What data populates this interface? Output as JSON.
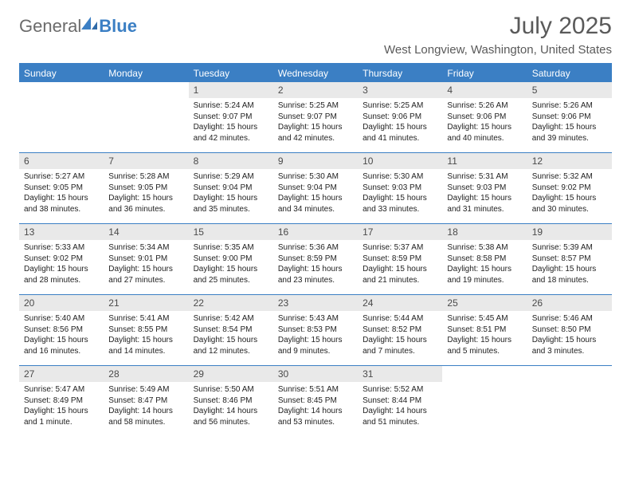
{
  "brand": {
    "part1": "General",
    "part2": "Blue"
  },
  "title": "July 2025",
  "location": "West Longview, Washington, United States",
  "colors": {
    "accent": "#3b7fc4",
    "daynum_bg": "#e9e9e9",
    "text": "#222222",
    "muted": "#5a5a5a",
    "white": "#ffffff"
  },
  "dayHeaders": [
    "Sunday",
    "Monday",
    "Tuesday",
    "Wednesday",
    "Thursday",
    "Friday",
    "Saturday"
  ],
  "weeks": [
    [
      {
        "day": "",
        "sunrise": "",
        "sunset": "",
        "daylight": ""
      },
      {
        "day": "",
        "sunrise": "",
        "sunset": "",
        "daylight": ""
      },
      {
        "day": "1",
        "sunrise": "Sunrise: 5:24 AM",
        "sunset": "Sunset: 9:07 PM",
        "daylight": "Daylight: 15 hours and 42 minutes."
      },
      {
        "day": "2",
        "sunrise": "Sunrise: 5:25 AM",
        "sunset": "Sunset: 9:07 PM",
        "daylight": "Daylight: 15 hours and 42 minutes."
      },
      {
        "day": "3",
        "sunrise": "Sunrise: 5:25 AM",
        "sunset": "Sunset: 9:06 PM",
        "daylight": "Daylight: 15 hours and 41 minutes."
      },
      {
        "day": "4",
        "sunrise": "Sunrise: 5:26 AM",
        "sunset": "Sunset: 9:06 PM",
        "daylight": "Daylight: 15 hours and 40 minutes."
      },
      {
        "day": "5",
        "sunrise": "Sunrise: 5:26 AM",
        "sunset": "Sunset: 9:06 PM",
        "daylight": "Daylight: 15 hours and 39 minutes."
      }
    ],
    [
      {
        "day": "6",
        "sunrise": "Sunrise: 5:27 AM",
        "sunset": "Sunset: 9:05 PM",
        "daylight": "Daylight: 15 hours and 38 minutes."
      },
      {
        "day": "7",
        "sunrise": "Sunrise: 5:28 AM",
        "sunset": "Sunset: 9:05 PM",
        "daylight": "Daylight: 15 hours and 36 minutes."
      },
      {
        "day": "8",
        "sunrise": "Sunrise: 5:29 AM",
        "sunset": "Sunset: 9:04 PM",
        "daylight": "Daylight: 15 hours and 35 minutes."
      },
      {
        "day": "9",
        "sunrise": "Sunrise: 5:30 AM",
        "sunset": "Sunset: 9:04 PM",
        "daylight": "Daylight: 15 hours and 34 minutes."
      },
      {
        "day": "10",
        "sunrise": "Sunrise: 5:30 AM",
        "sunset": "Sunset: 9:03 PM",
        "daylight": "Daylight: 15 hours and 33 minutes."
      },
      {
        "day": "11",
        "sunrise": "Sunrise: 5:31 AM",
        "sunset": "Sunset: 9:03 PM",
        "daylight": "Daylight: 15 hours and 31 minutes."
      },
      {
        "day": "12",
        "sunrise": "Sunrise: 5:32 AM",
        "sunset": "Sunset: 9:02 PM",
        "daylight": "Daylight: 15 hours and 30 minutes."
      }
    ],
    [
      {
        "day": "13",
        "sunrise": "Sunrise: 5:33 AM",
        "sunset": "Sunset: 9:02 PM",
        "daylight": "Daylight: 15 hours and 28 minutes."
      },
      {
        "day": "14",
        "sunrise": "Sunrise: 5:34 AM",
        "sunset": "Sunset: 9:01 PM",
        "daylight": "Daylight: 15 hours and 27 minutes."
      },
      {
        "day": "15",
        "sunrise": "Sunrise: 5:35 AM",
        "sunset": "Sunset: 9:00 PM",
        "daylight": "Daylight: 15 hours and 25 minutes."
      },
      {
        "day": "16",
        "sunrise": "Sunrise: 5:36 AM",
        "sunset": "Sunset: 8:59 PM",
        "daylight": "Daylight: 15 hours and 23 minutes."
      },
      {
        "day": "17",
        "sunrise": "Sunrise: 5:37 AM",
        "sunset": "Sunset: 8:59 PM",
        "daylight": "Daylight: 15 hours and 21 minutes."
      },
      {
        "day": "18",
        "sunrise": "Sunrise: 5:38 AM",
        "sunset": "Sunset: 8:58 PM",
        "daylight": "Daylight: 15 hours and 19 minutes."
      },
      {
        "day": "19",
        "sunrise": "Sunrise: 5:39 AM",
        "sunset": "Sunset: 8:57 PM",
        "daylight": "Daylight: 15 hours and 18 minutes."
      }
    ],
    [
      {
        "day": "20",
        "sunrise": "Sunrise: 5:40 AM",
        "sunset": "Sunset: 8:56 PM",
        "daylight": "Daylight: 15 hours and 16 minutes."
      },
      {
        "day": "21",
        "sunrise": "Sunrise: 5:41 AM",
        "sunset": "Sunset: 8:55 PM",
        "daylight": "Daylight: 15 hours and 14 minutes."
      },
      {
        "day": "22",
        "sunrise": "Sunrise: 5:42 AM",
        "sunset": "Sunset: 8:54 PM",
        "daylight": "Daylight: 15 hours and 12 minutes."
      },
      {
        "day": "23",
        "sunrise": "Sunrise: 5:43 AM",
        "sunset": "Sunset: 8:53 PM",
        "daylight": "Daylight: 15 hours and 9 minutes."
      },
      {
        "day": "24",
        "sunrise": "Sunrise: 5:44 AM",
        "sunset": "Sunset: 8:52 PM",
        "daylight": "Daylight: 15 hours and 7 minutes."
      },
      {
        "day": "25",
        "sunrise": "Sunrise: 5:45 AM",
        "sunset": "Sunset: 8:51 PM",
        "daylight": "Daylight: 15 hours and 5 minutes."
      },
      {
        "day": "26",
        "sunrise": "Sunrise: 5:46 AM",
        "sunset": "Sunset: 8:50 PM",
        "daylight": "Daylight: 15 hours and 3 minutes."
      }
    ],
    [
      {
        "day": "27",
        "sunrise": "Sunrise: 5:47 AM",
        "sunset": "Sunset: 8:49 PM",
        "daylight": "Daylight: 15 hours and 1 minute."
      },
      {
        "day": "28",
        "sunrise": "Sunrise: 5:49 AM",
        "sunset": "Sunset: 8:47 PM",
        "daylight": "Daylight: 14 hours and 58 minutes."
      },
      {
        "day": "29",
        "sunrise": "Sunrise: 5:50 AM",
        "sunset": "Sunset: 8:46 PM",
        "daylight": "Daylight: 14 hours and 56 minutes."
      },
      {
        "day": "30",
        "sunrise": "Sunrise: 5:51 AM",
        "sunset": "Sunset: 8:45 PM",
        "daylight": "Daylight: 14 hours and 53 minutes."
      },
      {
        "day": "31",
        "sunrise": "Sunrise: 5:52 AM",
        "sunset": "Sunset: 8:44 PM",
        "daylight": "Daylight: 14 hours and 51 minutes."
      },
      {
        "day": "",
        "sunrise": "",
        "sunset": "",
        "daylight": ""
      },
      {
        "day": "",
        "sunrise": "",
        "sunset": "",
        "daylight": ""
      }
    ]
  ]
}
